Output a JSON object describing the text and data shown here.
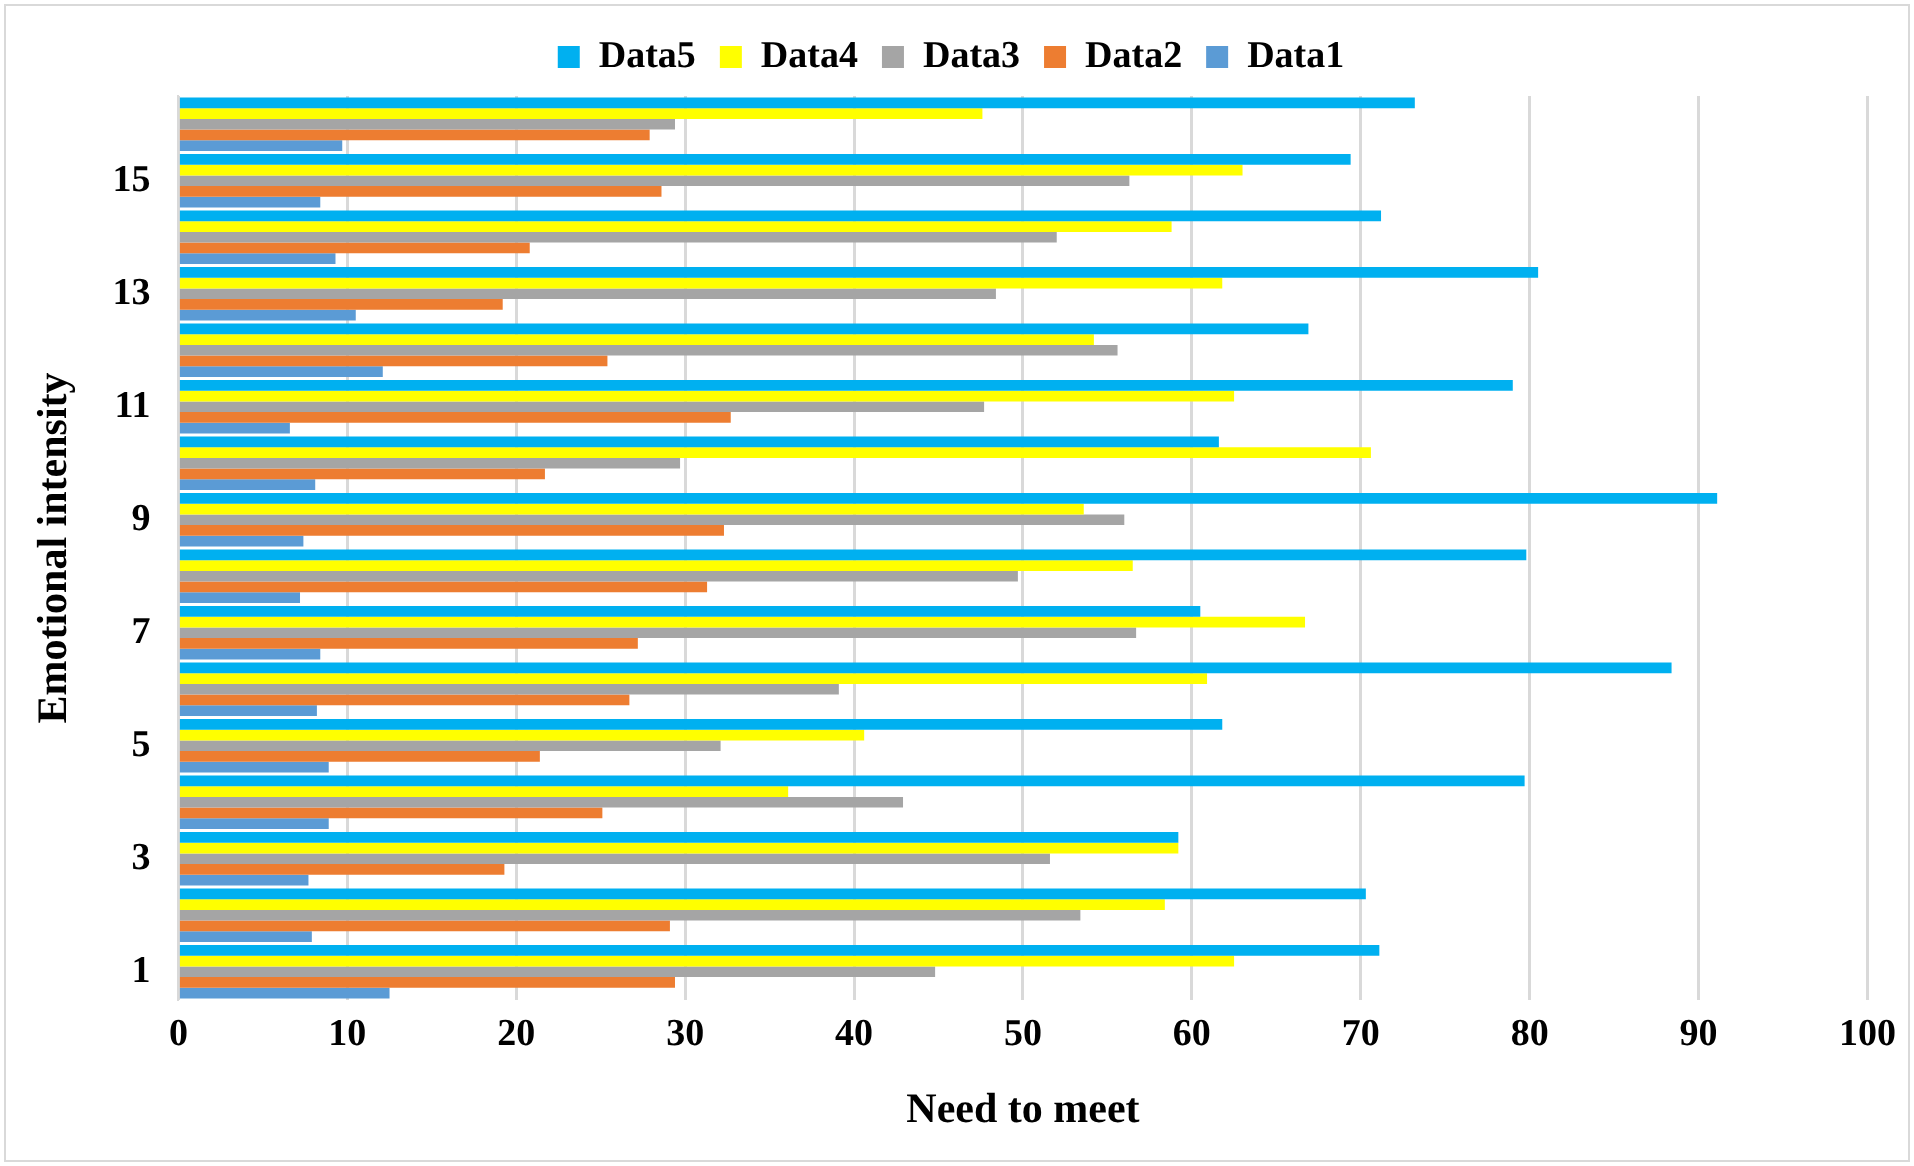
{
  "chart_data": {
    "type": "bar",
    "orientation": "horizontal",
    "xlabel": "Need to meet",
    "ylabel": "Emotional intensity",
    "categories": [
      null,
      "15",
      null,
      "13",
      null,
      "11",
      null,
      "9",
      null,
      "7",
      null,
      "5",
      null,
      "3",
      null,
      "1"
    ],
    "series": [
      {
        "name": "Data5",
        "color": "#00b0f0",
        "values": [
          73.2,
          69.4,
          71.2,
          80.5,
          66.9,
          79.0,
          61.6,
          91.1,
          79.8,
          60.5,
          88.4,
          61.8,
          79.7,
          59.2,
          70.3,
          71.1
        ]
      },
      {
        "name": "Data4",
        "color": "#ffff00",
        "values": [
          47.6,
          63.0,
          58.8,
          61.8,
          54.2,
          62.5,
          70.6,
          53.6,
          56.5,
          66.7,
          60.9,
          40.6,
          36.1,
          59.2,
          58.4,
          62.5
        ]
      },
      {
        "name": "Data3",
        "color": "#a5a5a5",
        "values": [
          29.4,
          56.3,
          52.0,
          48.4,
          55.6,
          47.7,
          29.7,
          56.0,
          49.7,
          56.7,
          39.1,
          32.1,
          42.9,
          51.6,
          53.4,
          44.8
        ]
      },
      {
        "name": "Data2",
        "color": "#ed7d31",
        "values": [
          27.9,
          28.6,
          20.8,
          19.2,
          25.4,
          32.7,
          21.7,
          32.3,
          31.3,
          27.2,
          26.7,
          21.4,
          25.1,
          19.3,
          29.1,
          29.4
        ]
      },
      {
        "name": "Data1",
        "color": "#5b9bd5",
        "values": [
          9.7,
          8.4,
          9.3,
          10.5,
          12.1,
          6.6,
          8.1,
          7.4,
          7.2,
          8.4,
          8.2,
          8.9,
          8.9,
          7.7,
          7.9,
          12.5
        ]
      }
    ],
    "xlim": [
      0,
      100
    ],
    "xticks": [
      0,
      10,
      20,
      30,
      40,
      50,
      60,
      70,
      80,
      90,
      100
    ],
    "grid": "x",
    "legend": "top"
  }
}
